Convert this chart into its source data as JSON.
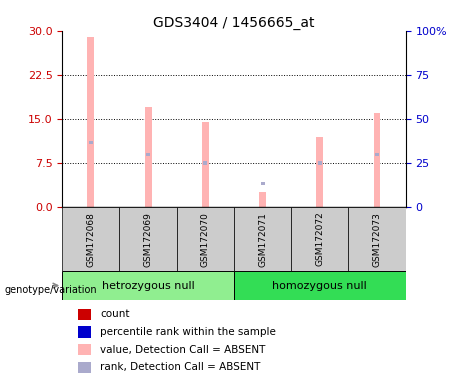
{
  "title": "GDS3404 / 1456665_at",
  "samples": [
    "GSM172068",
    "GSM172069",
    "GSM172070",
    "GSM172071",
    "GSM172072",
    "GSM172073"
  ],
  "pink_bar_values": [
    29.0,
    17.0,
    14.5,
    2.5,
    12.0,
    16.0
  ],
  "blue_marker_values": [
    11.0,
    9.0,
    7.5,
    4.0,
    7.5,
    9.0
  ],
  "left_ylim": [
    0,
    30
  ],
  "left_yticks": [
    0,
    7.5,
    15,
    22.5,
    30
  ],
  "right_ylim": [
    0,
    100
  ],
  "right_yticks": [
    0,
    25,
    50,
    75,
    100
  ],
  "right_yticklabels": [
    "0",
    "25",
    "50",
    "75",
    "100%"
  ],
  "left_tick_color": "#cc0000",
  "right_tick_color": "#0000cc",
  "bar_color_pink": "#ffb3b3",
  "bar_color_blue": "#aaaacc",
  "pink_bar_width": 0.12,
  "blue_bar_width": 0.07,
  "blue_bar_height": 0.55,
  "grid_values": [
    7.5,
    15,
    22.5
  ],
  "group_labels": [
    "hetrozygous null",
    "homozygous null"
  ],
  "group_ranges": [
    [
      0,
      2
    ],
    [
      3,
      5
    ]
  ],
  "group_colors": [
    "#90ee90",
    "#33dd55"
  ],
  "sample_box_color": "#cccccc",
  "legend_items": [
    {
      "color": "#cc0000",
      "label": "count"
    },
    {
      "color": "#0000cc",
      "label": "percentile rank within the sample"
    },
    {
      "color": "#ffb3b3",
      "label": "value, Detection Call = ABSENT"
    },
    {
      "color": "#aaaacc",
      "label": "rank, Detection Call = ABSENT"
    }
  ],
  "genotype_label": "genotype/variation",
  "background_color": "#ffffff",
  "title_fontsize": 10,
  "tick_fontsize": 8,
  "label_fontsize": 8,
  "legend_fontsize": 7.5
}
